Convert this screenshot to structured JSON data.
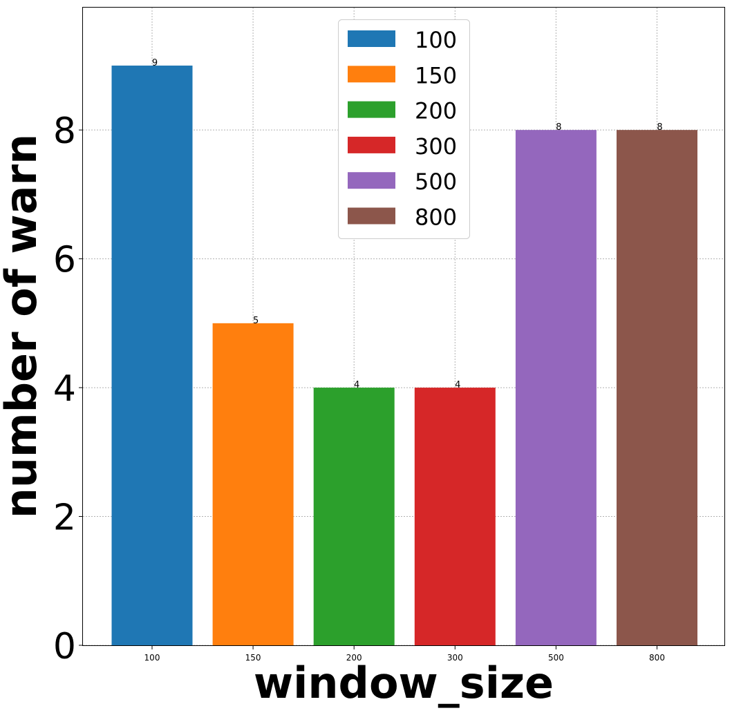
{
  "chart_data": {
    "type": "bar",
    "title": "",
    "xlabel": "window_size",
    "ylabel": "number of warn",
    "categories": [
      "100",
      "150",
      "200",
      "300",
      "500",
      "800"
    ],
    "values": [
      9,
      5,
      4,
      4,
      8,
      8
    ],
    "data_labels": [
      "9",
      "5",
      "4",
      "4",
      "8",
      "8"
    ],
    "colors": [
      "#1f77b4",
      "#ff7f0e",
      "#2ca02c",
      "#d62728",
      "#9467bd",
      "#8c564b"
    ],
    "legend": {
      "placement": "upper center",
      "entries": [
        "100",
        "150",
        "200",
        "300",
        "500",
        "800"
      ]
    },
    "ylim": [
      0,
      9.9
    ],
    "yticks": [
      0,
      2,
      4,
      6,
      8
    ],
    "grid": true
  }
}
